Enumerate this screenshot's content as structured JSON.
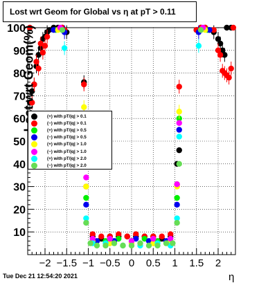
{
  "chart_data": {
    "type": "scatter",
    "title": "Lost wrt Geom for Global vs   η at pT > 0.11",
    "xlabel": "η",
    "ylabel": "Lost wrt Geom(%)",
    "xlim": [
      -2.4,
      2.4
    ],
    "ylim": [
      0,
      100
    ],
    "x_ticks": [
      -2,
      -1.5,
      -1,
      -0.5,
      0,
      0.5,
      1,
      1.5,
      2
    ],
    "x_tick_labels": [
      "−2",
      "−1.5",
      "−1",
      "−0.5",
      "0",
      "0.5",
      "1",
      "1.5",
      "2"
    ],
    "y_ticks": [
      10,
      20,
      30,
      40,
      50,
      60,
      70,
      80,
      90,
      100
    ],
    "y_tick_labels": [
      "10",
      "20",
      "30",
      "40",
      "50",
      "60",
      "70",
      "80",
      "90",
      "100"
    ],
    "grid": true,
    "legend_position": "middle-left",
    "series": [
      {
        "name": "(+) with pT/|q| > 0.1",
        "color": "#000000",
        "points": [
          [
            -2.35,
            67
          ],
          [
            -2.3,
            72
          ],
          [
            -2.25,
            75
          ],
          [
            -2.2,
            83
          ],
          [
            -2.15,
            88
          ],
          [
            -2.1,
            91
          ],
          [
            -2.05,
            95
          ],
          [
            -2.0,
            96
          ],
          [
            -1.95,
            98
          ],
          [
            -1.9,
            99
          ],
          [
            -1.8,
            100
          ],
          [
            -1.7,
            100
          ],
          [
            -1.6,
            100
          ],
          [
            -1.55,
            99
          ],
          [
            -1.5,
            98
          ],
          [
            -1.1,
            76
          ],
          [
            -1.05,
            40
          ],
          [
            -0.9,
            8
          ],
          [
            -0.7,
            7
          ],
          [
            -0.5,
            8
          ],
          [
            -0.3,
            8
          ],
          [
            -0.1,
            8
          ],
          [
            0.1,
            8
          ],
          [
            0.3,
            8
          ],
          [
            0.5,
            8
          ],
          [
            0.7,
            7
          ],
          [
            0.9,
            8
          ],
          [
            1.05,
            40
          ],
          [
            1.1,
            46
          ],
          [
            1.5,
            99
          ],
          [
            1.6,
            100
          ],
          [
            1.7,
            100
          ],
          [
            1.8,
            99
          ],
          [
            1.9,
            98
          ],
          [
            2.0,
            95
          ],
          [
            2.05,
            93
          ],
          [
            2.1,
            90
          ],
          [
            2.15,
            88
          ],
          [
            2.2,
            100
          ],
          [
            2.3,
            100
          ]
        ]
      },
      {
        "name": "(−) with pT/|q| > 0.1",
        "color": "#ff0000",
        "points": [
          [
            -2.35,
            100
          ],
          [
            -2.3,
            67
          ],
          [
            -2.25,
            75
          ],
          [
            -2.2,
            85
          ],
          [
            -2.15,
            82
          ],
          [
            -2.1,
            93
          ],
          [
            -2.05,
            89
          ],
          [
            -2.0,
            92
          ],
          [
            -1.95,
            96
          ],
          [
            -1.6,
            100
          ],
          [
            -1.55,
            99
          ],
          [
            -1.1,
            75
          ],
          [
            -1.05,
            30
          ],
          [
            -0.9,
            9
          ],
          [
            -0.7,
            8
          ],
          [
            -0.5,
            8
          ],
          [
            -0.3,
            9
          ],
          [
            -0.1,
            8
          ],
          [
            0.1,
            9
          ],
          [
            0.3,
            8
          ],
          [
            0.5,
            8
          ],
          [
            0.7,
            8
          ],
          [
            0.9,
            9
          ],
          [
            1.05,
            31
          ],
          [
            1.1,
            74
          ],
          [
            1.5,
            99
          ],
          [
            1.6,
            100
          ],
          [
            1.7,
            100
          ],
          [
            1.9,
            99
          ],
          [
            2.0,
            90
          ],
          [
            2.05,
            88
          ],
          [
            2.1,
            81
          ],
          [
            2.15,
            80
          ],
          [
            2.2,
            79
          ],
          [
            2.25,
            78
          ],
          [
            2.3,
            82
          ],
          [
            2.35,
            100
          ]
        ]
      },
      {
        "name": "(+) with pT/|q| > 0.5",
        "color": "#00ee00",
        "points": [
          [
            -1.75,
            99
          ],
          [
            -1.6,
            99
          ],
          [
            -1.1,
            60
          ],
          [
            -1.05,
            25
          ],
          [
            -0.9,
            6
          ],
          [
            -0.6,
            6
          ],
          [
            -0.3,
            7
          ],
          [
            0,
            6
          ],
          [
            0.3,
            7
          ],
          [
            0.6,
            6
          ],
          [
            0.9,
            6
          ],
          [
            1.05,
            25
          ],
          [
            1.1,
            60
          ],
          [
            1.6,
            99
          ],
          [
            1.75,
            99
          ]
        ]
      },
      {
        "name": "(−) with pT/|q| > 0.5",
        "color": "#0000ee",
        "points": [
          [
            -1.8,
            99
          ],
          [
            -1.55,
            98
          ],
          [
            -1.1,
            55
          ],
          [
            -1.05,
            22
          ],
          [
            -0.8,
            6
          ],
          [
            -0.4,
            6
          ],
          [
            0.1,
            7
          ],
          [
            0.4,
            6
          ],
          [
            0.8,
            6
          ],
          [
            1.05,
            22
          ],
          [
            1.1,
            55
          ],
          [
            1.55,
            98
          ],
          [
            1.8,
            99
          ]
        ]
      },
      {
        "name": "(+) with pT/|q| > 1.0",
        "color": "#ffff00",
        "points": [
          [
            -1.7,
            99
          ],
          [
            -1.1,
            65
          ],
          [
            -1.05,
            30
          ],
          [
            -0.9,
            6
          ],
          [
            -0.5,
            5
          ],
          [
            0,
            5
          ],
          [
            0.5,
            5
          ],
          [
            0.9,
            6
          ],
          [
            1.05,
            30
          ],
          [
            1.1,
            63
          ],
          [
            1.7,
            99
          ]
        ]
      },
      {
        "name": "(−) with pT/|q| > 1.0",
        "color": "#ff00ff",
        "points": [
          [
            -1.65,
            100
          ],
          [
            -1.1,
            58
          ],
          [
            -1.05,
            34
          ],
          [
            -0.9,
            7
          ],
          [
            -0.5,
            7
          ],
          [
            0,
            6
          ],
          [
            0.5,
            7
          ],
          [
            0.9,
            7
          ],
          [
            1.05,
            31
          ],
          [
            1.1,
            58
          ],
          [
            1.65,
            100
          ]
        ]
      },
      {
        "name": "(+) with pT/|q| > 2.0",
        "color": "#00ffff",
        "points": [
          [
            -1.55,
            91
          ],
          [
            -1.1,
            52
          ],
          [
            -1.05,
            16
          ],
          [
            -0.9,
            5
          ],
          [
            -0.6,
            5
          ],
          [
            -0.2,
            4
          ],
          [
            0.2,
            4
          ],
          [
            0.6,
            5
          ],
          [
            0.9,
            4
          ],
          [
            1.05,
            16
          ],
          [
            1.1,
            52
          ],
          [
            1.55,
            92
          ]
        ]
      },
      {
        "name": "(−) with pT/|q| > 2.0",
        "color": "#66dd55",
        "points": [
          [
            -1.6,
            99
          ],
          [
            -1.1,
            40
          ],
          [
            -1.05,
            14
          ],
          [
            -0.95,
            5
          ],
          [
            -0.8,
            4
          ],
          [
            -0.6,
            4
          ],
          [
            -0.4,
            5
          ],
          [
            -0.2,
            4
          ],
          [
            0.0,
            4
          ],
          [
            0.2,
            5
          ],
          [
            0.4,
            4
          ],
          [
            0.6,
            4
          ],
          [
            0.8,
            5
          ],
          [
            0.95,
            5
          ],
          [
            1.05,
            14
          ],
          [
            1.1,
            40
          ],
          [
            1.6,
            99
          ]
        ]
      }
    ]
  },
  "footer_timestamp": "Tue Dec 21 12:54:20 2021"
}
